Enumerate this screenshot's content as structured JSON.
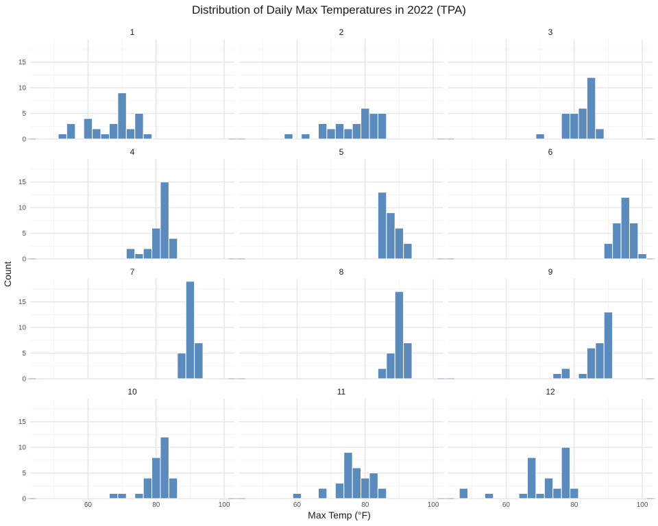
{
  "chart_data": {
    "type": "bar",
    "title": "Distribution of Daily Max Temperatures in 2022 (TPA)",
    "xlabel": "Max Temp (°F)",
    "ylabel": "Count",
    "xlim": [
      43,
      103
    ],
    "ylim": [
      0,
      19.5
    ],
    "x_ticks": [
      60,
      80,
      100
    ],
    "y_ticks": [
      0,
      5,
      10,
      15
    ],
    "bin_width": 2.5,
    "bar_color": "#5b8bbd",
    "grid": true,
    "facets": [
      {
        "label": "1",
        "bins": [
          [
            52.5,
            1
          ],
          [
            55,
            3
          ],
          [
            60,
            4
          ],
          [
            62.5,
            2
          ],
          [
            65,
            1
          ],
          [
            67.5,
            3
          ],
          [
            70,
            9
          ],
          [
            72.5,
            2
          ],
          [
            75,
            5
          ],
          [
            77.5,
            1
          ]
        ]
      },
      {
        "label": "2",
        "bins": [
          [
            57.5,
            1
          ],
          [
            62.5,
            1
          ],
          [
            67.5,
            3
          ],
          [
            70,
            2
          ],
          [
            72.5,
            3
          ],
          [
            75,
            2
          ],
          [
            77.5,
            3
          ],
          [
            80,
            6
          ],
          [
            82.5,
            5
          ],
          [
            85,
            5
          ]
        ]
      },
      {
        "label": "3",
        "bins": [
          [
            70,
            1
          ],
          [
            77.5,
            5
          ],
          [
            80,
            5
          ],
          [
            82.5,
            6
          ],
          [
            85,
            12
          ],
          [
            87.5,
            2
          ]
        ]
      },
      {
        "label": "4",
        "bins": [
          [
            72.5,
            2
          ],
          [
            75,
            1
          ],
          [
            77.5,
            2
          ],
          [
            80,
            6
          ],
          [
            82.5,
            15
          ],
          [
            85,
            4
          ]
        ]
      },
      {
        "label": "5",
        "bins": [
          [
            85,
            13
          ],
          [
            87.5,
            9
          ],
          [
            90,
            6
          ],
          [
            92.5,
            3
          ]
        ]
      },
      {
        "label": "6",
        "bins": [
          [
            90,
            3
          ],
          [
            92.5,
            7
          ],
          [
            95,
            12
          ],
          [
            97.5,
            7
          ],
          [
            100,
            1
          ]
        ]
      },
      {
        "label": "7",
        "bins": [
          [
            87.5,
            5
          ],
          [
            90,
            19
          ],
          [
            92.5,
            7
          ]
        ]
      },
      {
        "label": "8",
        "bins": [
          [
            85,
            2
          ],
          [
            87.5,
            5
          ],
          [
            90,
            17
          ],
          [
            92.5,
            7
          ]
        ]
      },
      {
        "label": "9",
        "bins": [
          [
            75,
            1
          ],
          [
            77.5,
            2
          ],
          [
            82.5,
            1
          ],
          [
            85,
            6
          ],
          [
            87.5,
            7
          ],
          [
            90,
            13
          ]
        ]
      },
      {
        "label": "10",
        "bins": [
          [
            67.5,
            1
          ],
          [
            70,
            1
          ],
          [
            75,
            1
          ],
          [
            77.5,
            4
          ],
          [
            80,
            8
          ],
          [
            82.5,
            12
          ],
          [
            85,
            4
          ]
        ]
      },
      {
        "label": "11",
        "bins": [
          [
            60,
            1
          ],
          [
            67.5,
            2
          ],
          [
            72.5,
            3
          ],
          [
            75,
            9
          ],
          [
            77.5,
            6
          ],
          [
            80,
            4
          ],
          [
            82.5,
            5
          ],
          [
            85,
            2
          ]
        ]
      },
      {
        "label": "12",
        "bins": [
          [
            47.5,
            2
          ],
          [
            55,
            1
          ],
          [
            65,
            1
          ],
          [
            67.5,
            8
          ],
          [
            70,
            1
          ],
          [
            72.5,
            4
          ],
          [
            75,
            2
          ],
          [
            77.5,
            10
          ],
          [
            80,
            2
          ]
        ]
      }
    ]
  }
}
